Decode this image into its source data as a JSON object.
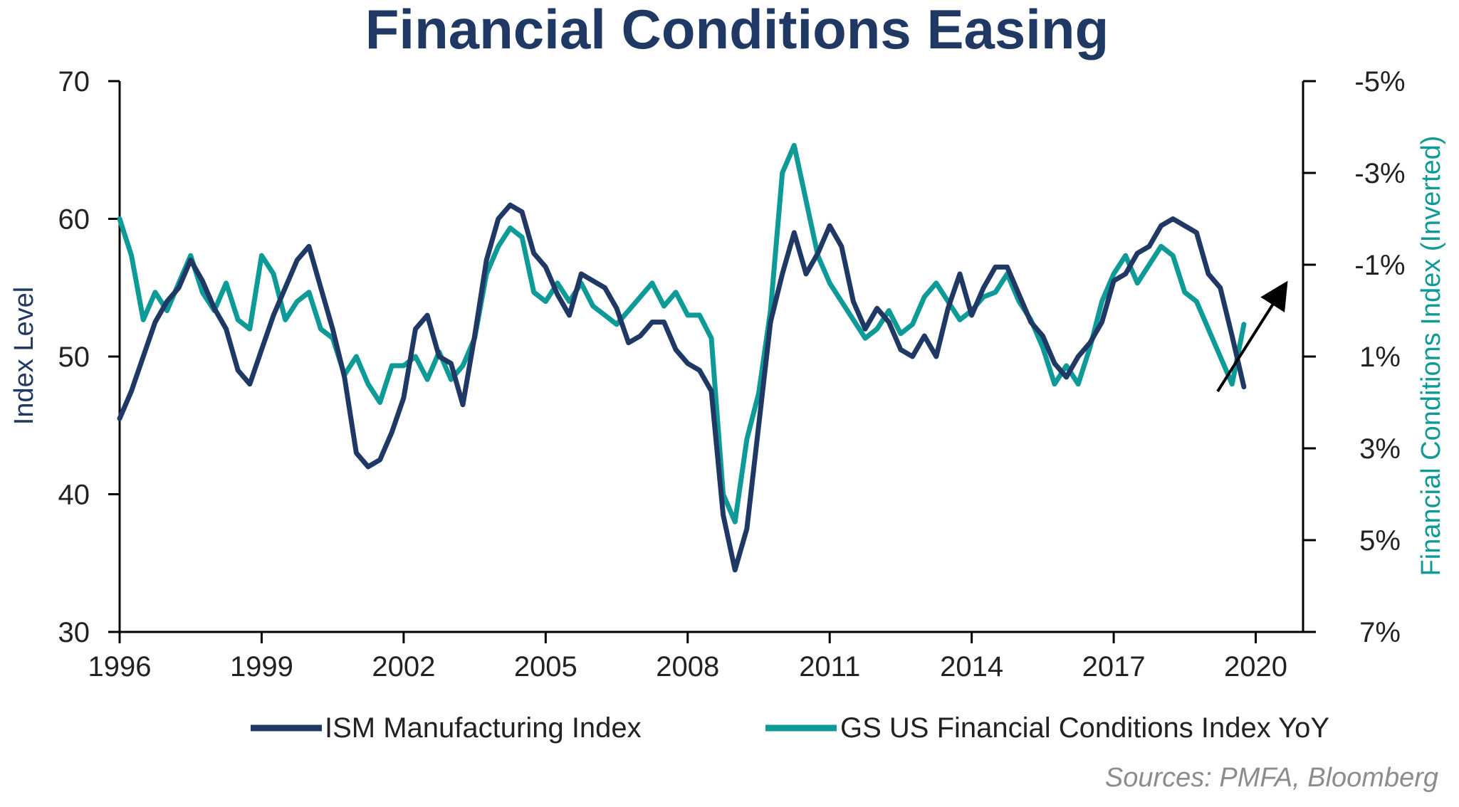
{
  "chart_data": {
    "type": "line",
    "title": "Financial Conditions Easing",
    "ylabel": "Index Level",
    "ylabel_right": "Financial  Conditions  Index (Inverted)",
    "source": "Sources:  PMFA, Bloomberg",
    "ylim": [
      30,
      70
    ],
    "ylim_right": [
      7,
      -5
    ],
    "xlim": [
      1996,
      2021
    ],
    "x_ticks": [
      "1996",
      "1999",
      "2002",
      "2005",
      "2008",
      "2011",
      "2014",
      "2017",
      "2020"
    ],
    "y_ticks_left": [
      "70",
      "60",
      "50",
      "40",
      "30"
    ],
    "y_ticks_right": [
      "-5%",
      "-3%",
      "-1%",
      "1%",
      "3%",
      "5%",
      "7%"
    ],
    "legend_position": "bottom",
    "colors": {
      "ism": "#1f3864",
      "fci": "#0e9a97",
      "title": "#1f3864",
      "arrow": "#000000"
    },
    "series": [
      {
        "name": "ISM Manufacturing Index",
        "axis": "left",
        "x": [
          1996.0,
          1996.25,
          1996.5,
          1996.75,
          1997.0,
          1997.25,
          1997.5,
          1997.75,
          1998.0,
          1998.25,
          1998.5,
          1998.75,
          1999.0,
          1999.25,
          1999.5,
          1999.75,
          2000.0,
          2000.25,
          2000.5,
          2000.75,
          2001.0,
          2001.25,
          2001.5,
          2001.75,
          2002.0,
          2002.25,
          2002.5,
          2002.75,
          2003.0,
          2003.25,
          2003.5,
          2003.75,
          2004.0,
          2004.25,
          2004.5,
          2004.75,
          2005.0,
          2005.25,
          2005.5,
          2005.75,
          2006.0,
          2006.25,
          2006.5,
          2006.75,
          2007.0,
          2007.25,
          2007.5,
          2007.75,
          2008.0,
          2008.25,
          2008.5,
          2008.75,
          2009.0,
          2009.25,
          2009.5,
          2009.75,
          2010.0,
          2010.25,
          2010.5,
          2010.75,
          2011.0,
          2011.25,
          2011.5,
          2011.75,
          2012.0,
          2012.25,
          2012.5,
          2012.75,
          2013.0,
          2013.25,
          2013.5,
          2013.75,
          2014.0,
          2014.25,
          2014.5,
          2014.75,
          2015.0,
          2015.25,
          2015.5,
          2015.75,
          2016.0,
          2016.25,
          2016.5,
          2016.75,
          2017.0,
          2017.25,
          2017.5,
          2017.75,
          2018.0,
          2018.25,
          2018.5,
          2018.75,
          2019.0,
          2019.25,
          2019.5,
          2019.75
        ],
        "values": [
          45.5,
          47.5,
          50.0,
          52.5,
          54.0,
          55.0,
          57.0,
          55.5,
          53.5,
          52.0,
          49.0,
          48.0,
          50.5,
          53.0,
          55.0,
          57.0,
          58.0,
          55.0,
          52.0,
          48.5,
          43.0,
          42.0,
          42.5,
          44.5,
          47.0,
          52.0,
          53.0,
          50.0,
          49.5,
          46.5,
          51.5,
          57.0,
          60.0,
          61.0,
          60.5,
          57.5,
          56.5,
          54.5,
          53.0,
          56.0,
          55.5,
          55.0,
          53.5,
          51.0,
          51.5,
          52.5,
          52.5,
          50.5,
          49.5,
          49.0,
          47.5,
          38.5,
          34.5,
          37.5,
          45.0,
          52.5,
          56.0,
          59.0,
          56.0,
          57.5,
          59.5,
          58.0,
          54.0,
          52.0,
          53.5,
          52.5,
          50.5,
          50.0,
          51.5,
          50.0,
          53.5,
          56.0,
          53.0,
          55.0,
          56.5,
          56.5,
          54.5,
          52.5,
          51.5,
          49.5,
          48.5,
          50.0,
          51.0,
          52.5,
          55.5,
          56.0,
          57.5,
          58.0,
          59.5,
          60.0,
          59.5,
          59.0,
          56.0,
          55.0,
          51.5,
          47.8
        ]
      },
      {
        "name": "GS US Financial Conditions Index YoY",
        "axis": "right",
        "x": [
          1996.0,
          1996.25,
          1996.5,
          1996.75,
          1997.0,
          1997.25,
          1997.5,
          1997.75,
          1998.0,
          1998.25,
          1998.5,
          1998.75,
          1999.0,
          1999.25,
          1999.5,
          1999.75,
          2000.0,
          2000.25,
          2000.5,
          2000.75,
          2001.0,
          2001.25,
          2001.5,
          2001.75,
          2002.0,
          2002.25,
          2002.5,
          2002.75,
          2003.0,
          2003.25,
          2003.5,
          2003.75,
          2004.0,
          2004.25,
          2004.5,
          2004.75,
          2005.0,
          2005.25,
          2005.5,
          2005.75,
          2006.0,
          2006.25,
          2006.5,
          2006.75,
          2007.0,
          2007.25,
          2007.5,
          2007.75,
          2008.0,
          2008.25,
          2008.5,
          2008.75,
          2009.0,
          2009.25,
          2009.5,
          2009.75,
          2010.0,
          2010.25,
          2010.5,
          2010.75,
          2011.0,
          2011.25,
          2011.5,
          2011.75,
          2012.0,
          2012.25,
          2012.5,
          2012.75,
          2013.0,
          2013.25,
          2013.5,
          2013.75,
          2014.0,
          2014.25,
          2014.5,
          2014.75,
          2015.0,
          2015.25,
          2015.5,
          2015.75,
          2016.0,
          2016.25,
          2016.5,
          2016.75,
          2017.0,
          2017.25,
          2017.5,
          2017.75,
          2018.0,
          2018.25,
          2018.5,
          2018.75,
          2019.0,
          2019.25,
          2019.5,
          2019.75
        ],
        "values": [
          -2.0,
          -1.2,
          0.2,
          -0.4,
          0.0,
          -0.6,
          -1.2,
          -0.4,
          0.0,
          -0.6,
          0.2,
          0.4,
          -1.2,
          -0.8,
          0.2,
          -0.2,
          -0.4,
          0.4,
          0.6,
          1.4,
          1.0,
          1.6,
          2.0,
          1.2,
          1.2,
          1.0,
          1.5,
          0.9,
          1.5,
          1.2,
          0.6,
          -0.8,
          -1.4,
          -1.8,
          -1.6,
          -0.4,
          -0.2,
          -0.6,
          -0.2,
          -0.6,
          -0.1,
          0.1,
          0.3,
          0.0,
          -0.3,
          -0.6,
          -0.1,
          -0.4,
          0.1,
          0.1,
          0.6,
          4.0,
          4.6,
          2.8,
          1.8,
          0.0,
          -3.0,
          -3.6,
          -2.4,
          -1.2,
          -0.6,
          -0.2,
          0.2,
          0.6,
          0.4,
          0.0,
          0.5,
          0.3,
          -0.3,
          -0.6,
          -0.2,
          0.2,
          0.0,
          -0.3,
          -0.4,
          -0.8,
          -0.2,
          0.2,
          0.8,
          1.6,
          1.2,
          1.6,
          0.8,
          -0.2,
          -0.8,
          -1.2,
          -0.6,
          -1.0,
          -1.4,
          -1.2,
          -0.4,
          -0.2,
          0.4,
          1.0,
          1.6,
          0.3
        ]
      }
    ]
  }
}
